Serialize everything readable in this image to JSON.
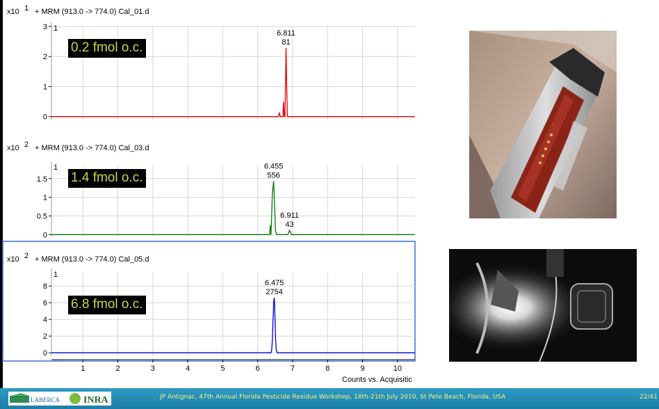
{
  "colors": {
    "panel1": "#dd0000",
    "panel2": "#007a00",
    "panel3": "#0000cc",
    "label_text": "#c6d84a",
    "footer_bg": "#2389b5",
    "footer_text": "#f5f28c"
  },
  "chart_data": [
    {
      "type": "line",
      "title": "+ MRM (913.0 -> 774.0) Cal_01.d",
      "scale": "x10",
      "exponent": "1",
      "panel_index": "1",
      "concentration_label": "0.2 fmol o.c.",
      "xlim": [
        0.1,
        10.5
      ],
      "ylim": [
        -0.1,
        3
      ],
      "y_ticks": [
        "0",
        "1",
        "2",
        "3"
      ],
      "series": [
        {
          "x": [
            0.1,
            6.59,
            6.62,
            6.65,
            6.68,
            6.72,
            6.74,
            6.76,
            6.78,
            6.8,
            6.811,
            6.83,
            6.85,
            6.87,
            10.5
          ],
          "values": [
            0,
            0,
            0.12,
            0,
            0,
            0,
            0.5,
            0,
            0,
            1.3,
            2.28,
            1.1,
            0,
            0,
            0
          ]
        }
      ],
      "annotations": [
        {
          "x": 6.811,
          "y": 2.28,
          "rt": "6.811",
          "area": "81"
        }
      ]
    },
    {
      "type": "line",
      "title": "+ MRM (913.0 -> 774.0) Cal_03.d",
      "scale": "x10",
      "exponent": "2",
      "panel_index": "1",
      "concentration_label": "1.4 fmol o.c.",
      "xlim": [
        0.1,
        10.5
      ],
      "ylim": [
        -0.05,
        1.85
      ],
      "y_ticks": [
        "0",
        "0.5",
        "1",
        "1.5"
      ],
      "series": [
        {
          "x": [
            0.1,
            6.34,
            6.36,
            6.38,
            6.4,
            6.42,
            6.455,
            6.48,
            6.51,
            6.54,
            6.86,
            6.89,
            6.911,
            6.94,
            6.97,
            10.5
          ],
          "values": [
            0,
            0,
            0.25,
            0,
            0.5,
            1.1,
            1.43,
            0.9,
            0.1,
            0,
            0,
            0.06,
            0.12,
            0.05,
            0,
            0
          ]
        }
      ],
      "annotations": [
        {
          "x": 6.455,
          "y": 1.43,
          "rt": "6.455",
          "area": "556"
        },
        {
          "x": 6.911,
          "y": 0.12,
          "rt": "6.911",
          "area": "43"
        }
      ]
    },
    {
      "type": "line",
      "title": "+ MRM (913.0 -> 774.0) Cal_05.d",
      "scale": "x10",
      "exponent": "2",
      "panel_index": "1",
      "concentration_label": "6.8 fmol o.c.",
      "xlim": [
        0.1,
        10.5
      ],
      "ylim": [
        -0.4,
        9.6
      ],
      "y_ticks": [
        "0",
        "2",
        "4",
        "6",
        "8"
      ],
      "x_ticks": [
        "1",
        "2",
        "3",
        "4",
        "5",
        "6",
        "7",
        "8",
        "9",
        "10"
      ],
      "xlabel": "Counts vs. Acquisitic",
      "series": [
        {
          "x": [
            0.1,
            6.38,
            6.4,
            6.42,
            6.44,
            6.46,
            6.475,
            6.49,
            6.51,
            6.53,
            6.56,
            10.5
          ],
          "values": [
            0,
            0,
            0.3,
            1.5,
            4.0,
            6.2,
            6.6,
            5.0,
            2.0,
            0.3,
            0,
            0
          ]
        }
      ],
      "annotations": [
        {
          "x": 6.475,
          "y": 6.6,
          "rt": "6.475",
          "area": "2754"
        }
      ]
    }
  ],
  "footer": {
    "citation": "JP Antignac, 47th Annual Florida Pesticide Residue Workshop, 18th-21th July 2010, St Pete Beach, Florida, USA",
    "page": "22/41",
    "logo_laberca": "LABERCA",
    "logo_inra": "INRA"
  }
}
